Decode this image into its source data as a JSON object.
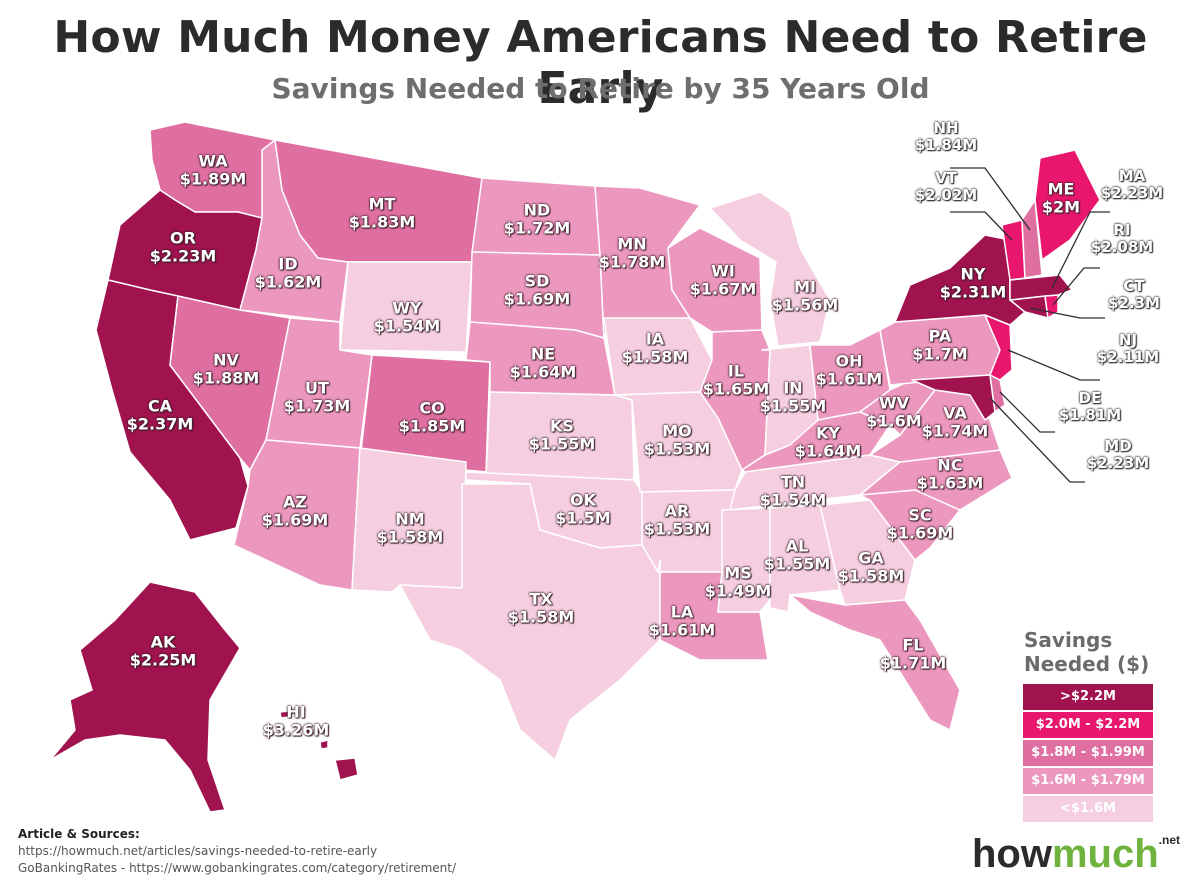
{
  "title": "How Much Money Americans Need to Retire Early",
  "subtitle": "Savings Needed to Retire by 35 Years Old",
  "colors": {
    "tier1": "#a1134f",
    "tier2": "#e8176d",
    "tier3": "#df6fa1",
    "tier4": "#ec97bd",
    "tier5": "#f5cfe0",
    "border": "#ffffff"
  },
  "legend": {
    "title_line1": "Savings",
    "title_line2": "Needed ($)",
    "items": [
      {
        "label": ">$2.2M",
        "color": "#a1134f"
      },
      {
        "label": "$2.0M - $2.2M",
        "color": "#e8176d"
      },
      {
        "label": "$1.8M - $1.99M",
        "color": "#df6fa1"
      },
      {
        "label": "$1.6M - $1.79M",
        "color": "#ec97bd"
      },
      {
        "label": "<$1.6M",
        "color": "#f5cfe0"
      }
    ]
  },
  "states": [
    {
      "abbr": "WA",
      "value": "$1.89M"
    },
    {
      "abbr": "OR",
      "value": "$2.23M"
    },
    {
      "abbr": "CA",
      "value": "$2.37M"
    },
    {
      "abbr": "ID",
      "value": "$1.62M"
    },
    {
      "abbr": "NV",
      "value": "$1.88M"
    },
    {
      "abbr": "MT",
      "value": "$1.83M"
    },
    {
      "abbr": "WY",
      "value": "$1.54M"
    },
    {
      "abbr": "UT",
      "value": "$1.73M"
    },
    {
      "abbr": "AZ",
      "value": "$1.69M"
    },
    {
      "abbr": "CO",
      "value": "$1.85M"
    },
    {
      "abbr": "NM",
      "value": "$1.58M"
    },
    {
      "abbr": "ND",
      "value": "$1.72M"
    },
    {
      "abbr": "SD",
      "value": "$1.69M"
    },
    {
      "abbr": "NE",
      "value": "$1.64M"
    },
    {
      "abbr": "KS",
      "value": "$1.55M"
    },
    {
      "abbr": "OK",
      "value": "$1.5M"
    },
    {
      "abbr": "TX",
      "value": "$1.58M"
    },
    {
      "abbr": "MN",
      "value": "$1.78M"
    },
    {
      "abbr": "IA",
      "value": "$1.58M"
    },
    {
      "abbr": "MO",
      "value": "$1.53M"
    },
    {
      "abbr": "AR",
      "value": "$1.53M"
    },
    {
      "abbr": "LA",
      "value": "$1.61M"
    },
    {
      "abbr": "WI",
      "value": "$1.67M"
    },
    {
      "abbr": "IL",
      "value": "$1.65M"
    },
    {
      "abbr": "MI",
      "value": "$1.56M"
    },
    {
      "abbr": "IN",
      "value": "$1.55M"
    },
    {
      "abbr": "OH",
      "value": "$1.61M"
    },
    {
      "abbr": "KY",
      "value": "$1.64M"
    },
    {
      "abbr": "TN",
      "value": "$1.54M"
    },
    {
      "abbr": "MS",
      "value": "$1.49M"
    },
    {
      "abbr": "AL",
      "value": "$1.55M"
    },
    {
      "abbr": "GA",
      "value": "$1.58M"
    },
    {
      "abbr": "FL",
      "value": "$1.71M"
    },
    {
      "abbr": "SC",
      "value": "$1.69M"
    },
    {
      "abbr": "NC",
      "value": "$1.63M"
    },
    {
      "abbr": "VA",
      "value": "$1.74M"
    },
    {
      "abbr": "WV",
      "value": "$1.6M"
    },
    {
      "abbr": "PA",
      "value": "$1.7M"
    },
    {
      "abbr": "NY",
      "value": "$2.31M"
    },
    {
      "abbr": "ME",
      "value": "$2M"
    },
    {
      "abbr": "AK",
      "value": "$2.25M"
    },
    {
      "abbr": "HI",
      "value": "$3.26M"
    }
  ],
  "callouts": [
    {
      "abbr": "NH",
      "value": "$1.84M"
    },
    {
      "abbr": "VT",
      "value": "$2.02M"
    },
    {
      "abbr": "MA",
      "value": "$2.23M"
    },
    {
      "abbr": "RI",
      "value": "$2.08M"
    },
    {
      "abbr": "CT",
      "value": "$2.3M"
    },
    {
      "abbr": "NJ",
      "value": "$2.11M"
    },
    {
      "abbr": "DE",
      "value": "$1.81M"
    },
    {
      "abbr": "MD",
      "value": "$2.23M"
    }
  ],
  "sources": {
    "heading": "Article & Sources:",
    "line1": "https://howmuch.net/articles/savings-needed-to-retire-early",
    "line2": "GoBankingRates - https://www.gobankingrates.com/category/retirement/"
  },
  "brand": {
    "part1": "how",
    "part2": "much",
    "suffix": ".net"
  }
}
